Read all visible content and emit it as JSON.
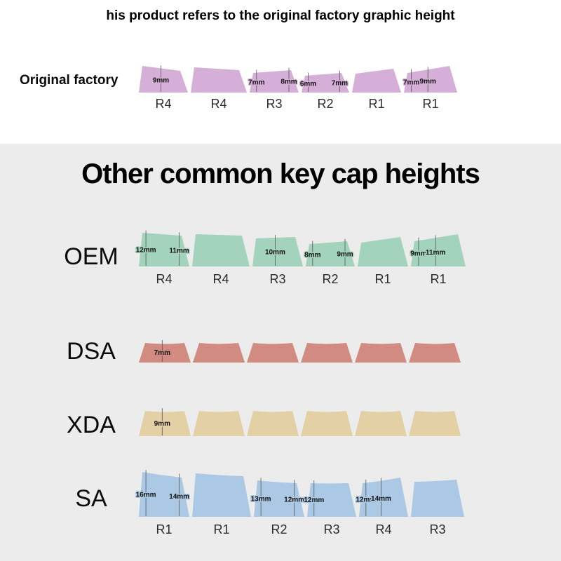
{
  "header": {
    "title": "his product refers to the original factory graphic height"
  },
  "section": {
    "title": "Other common key cap heights"
  },
  "rows": [
    {
      "name": "Original factory",
      "color": "#d6afd8",
      "keys": [
        {
          "labels": [
            {
              "text": "9mm",
              "at": "mid"
            }
          ],
          "r": "R4"
        },
        {
          "labels": [],
          "r": "R4"
        },
        {
          "labels": [
            {
              "text": "7mm",
              "at": "left"
            },
            {
              "text": "8mm",
              "at": "right"
            }
          ],
          "r": "R3"
        },
        {
          "labels": [
            {
              "text": "6mm",
              "at": "left"
            },
            {
              "text": "7mm",
              "at": "right"
            }
          ],
          "r": "R2"
        },
        {
          "labels": [],
          "r": "R1"
        },
        {
          "labels": [
            {
              "text": "7mm",
              "at": "left"
            },
            {
              "text": "9mm",
              "at": "mid"
            }
          ],
          "r": "R1"
        }
      ]
    },
    {
      "name": "OEM",
      "color": "#a3d2bd",
      "keys": [
        {
          "labels": [
            {
              "text": "12mm",
              "at": "left"
            },
            {
              "text": "11mm",
              "at": "right"
            }
          ],
          "r": "R4"
        },
        {
          "labels": [],
          "r": "R4"
        },
        {
          "labels": [
            {
              "text": "10mm",
              "at": "mid"
            }
          ],
          "r": "R3"
        },
        {
          "labels": [
            {
              "text": "8mm",
              "at": "left"
            },
            {
              "text": "9mm",
              "at": "right"
            }
          ],
          "r": "R2"
        },
        {
          "labels": [],
          "r": "R1"
        },
        {
          "labels": [
            {
              "text": "9mm",
              "at": "left"
            },
            {
              "text": "11mm",
              "at": "mid"
            }
          ],
          "r": "R1"
        }
      ]
    },
    {
      "name": "DSA",
      "color": "#d28b80",
      "keys": [
        {
          "labels": [
            {
              "text": "7mm",
              "at": "mid"
            }
          ]
        },
        {
          "labels": []
        },
        {
          "labels": []
        },
        {
          "labels": []
        },
        {
          "labels": []
        },
        {
          "labels": []
        }
      ]
    },
    {
      "name": "XDA",
      "color": "#e3d0a4",
      "keys": [
        {
          "labels": [
            {
              "text": "9mm",
              "at": "mid"
            }
          ]
        },
        {
          "labels": []
        },
        {
          "labels": []
        },
        {
          "labels": []
        },
        {
          "labels": []
        },
        {
          "labels": []
        }
      ]
    },
    {
      "name": "SA",
      "color": "#abc9e4",
      "keys": [
        {
          "labels": [
            {
              "text": "16mm",
              "at": "left"
            },
            {
              "text": "14mm",
              "at": "right"
            }
          ],
          "r": "R1"
        },
        {
          "labels": [],
          "r": "R1"
        },
        {
          "labels": [
            {
              "text": "13mm",
              "at": "left"
            },
            {
              "text": "12mm",
              "at": "right"
            }
          ],
          "r": "R2"
        },
        {
          "labels": [
            {
              "text": "12mm",
              "at": "left"
            }
          ],
          "r": "R3"
        },
        {
          "labels": [
            {
              "text": "12mm",
              "at": "left"
            },
            {
              "text": "14mm",
              "at": "mid"
            }
          ],
          "r": "R4"
        },
        {
          "labels": [],
          "r": "R3"
        }
      ]
    }
  ]
}
